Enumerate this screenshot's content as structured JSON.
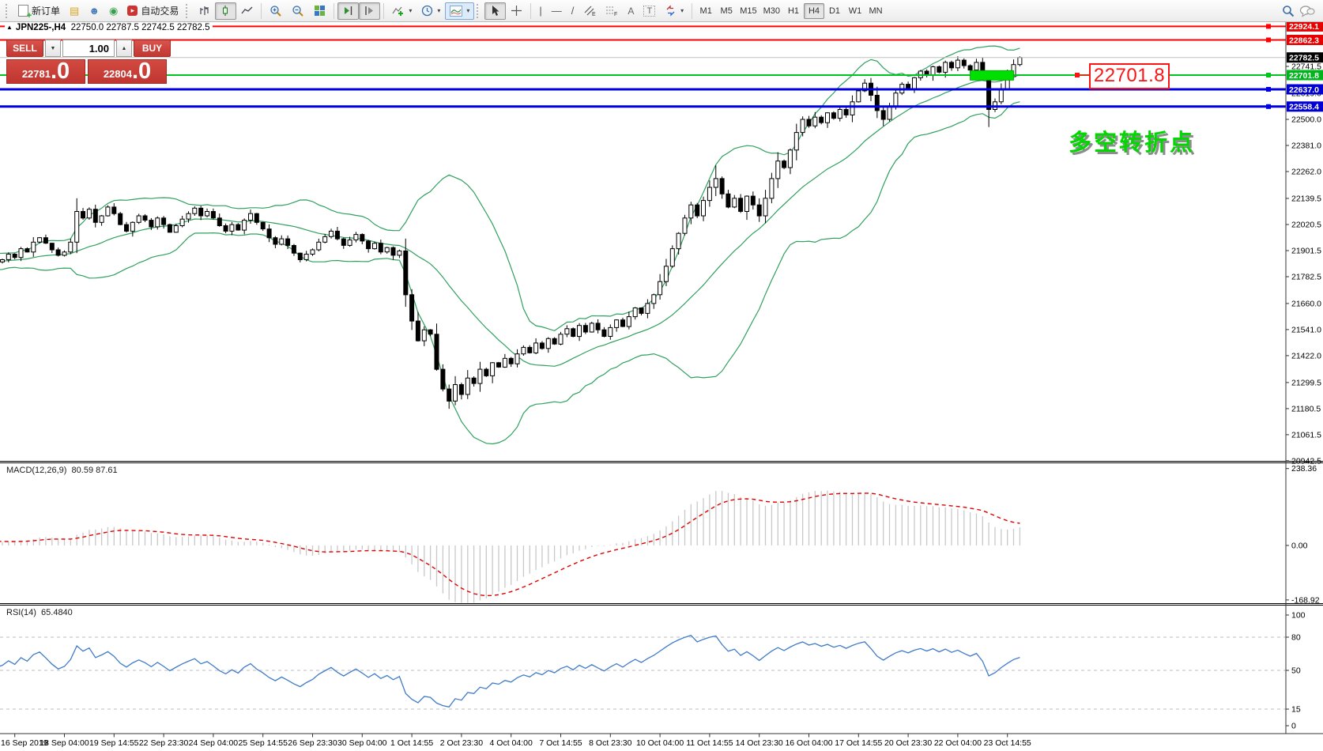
{
  "toolbar": {
    "new_order_label": "新订单",
    "autotrading_label": "自动交易",
    "tool_a_label": "A",
    "tool_t_label": "T",
    "timeframes": [
      "M1",
      "M5",
      "M15",
      "M30",
      "H1",
      "H4",
      "D1",
      "W1",
      "MN"
    ],
    "active_timeframe": "H4"
  },
  "chart_header": {
    "collapse_arrow": "▲",
    "symbol_tf": "JPN225-,H4",
    "ohlc": "22750.0 22787.5 22742.5 22782.5"
  },
  "trade_panel": {
    "sell_label": "SELL",
    "buy_label": "BUY",
    "volume": "1.00",
    "sell_price_small": "22781",
    "sell_price_big": ".0",
    "buy_price_small": "22804",
    "buy_price_big": ".0"
  },
  "indicator_labels": {
    "macd": "MACD(12,26,9)",
    "macd_values": "80.59 87.61",
    "rsi": "RSI(14)",
    "rsi_values": "65.4840"
  },
  "annotations": {
    "price_callout": "22701.8",
    "turning_point_text": "多空转折点",
    "highlight_box": {
      "from_candle": 156,
      "to_candle": 163,
      "price_top": 22722,
      "price_bottom": 22679,
      "color": "#00e000"
    }
  },
  "levels": [
    {
      "price": 22924.1,
      "label": "22924.1",
      "line_color": "#ff0000",
      "badge_color": "#e60000",
      "width": 2
    },
    {
      "price": 22862.3,
      "label": "22862.3",
      "line_color": "#ff0000",
      "badge_color": "#e60000",
      "width": 2
    },
    {
      "price": 22782.5,
      "label": "22782.5",
      "line_color": "#c0c0c0",
      "badge_color": "#000000",
      "width": 1,
      "current": true
    },
    {
      "price": 22701.8,
      "label": "22701.8",
      "line_color": "#00c41f",
      "badge_color": "#00b41c",
      "width": 2
    },
    {
      "price": 22637.0,
      "label": "22637.0",
      "line_color": "#0000e0",
      "badge_color": "#0000d2",
      "width": 3
    },
    {
      "price": 22558.4,
      "label": "22558.4",
      "line_color": "#0000e0",
      "badge_color": "#0000d2",
      "width": 3
    }
  ],
  "axis": {
    "price_ticks": [
      22741.5,
      22619.0,
      22500.0,
      22381.0,
      22262.0,
      22139.5,
      22020.5,
      21901.5,
      21782.5,
      21660.0,
      21541.0,
      21422.0,
      21299.5,
      21180.5,
      21061.5,
      20942.5
    ],
    "macd_ticks": [
      {
        "value": 238.36,
        "label": "238.36"
      },
      {
        "value": 0,
        "label": "0.00"
      },
      {
        "value": -168.92,
        "label": "-168.92"
      }
    ],
    "rsi_ticks": [
      {
        "value": 100,
        "label": "100",
        "dashed": false
      },
      {
        "value": 80,
        "label": "80",
        "dashed": true
      },
      {
        "value": 50,
        "label": "50",
        "dashed": true
      },
      {
        "value": 15,
        "label": "15",
        "dashed": true
      },
      {
        "value": 0,
        "label": "0",
        "dashed": false
      }
    ],
    "time_labels": [
      "16 Sep 2019",
      "18 Sep 04:00",
      "19 Sep 14:55",
      "22 Sep 23:30",
      "24 Sep 04:00",
      "25 Sep 14:55",
      "26 Sep 23:30",
      "30 Sep 04:00",
      "1 Oct 14:55",
      "2 Oct 23:30",
      "4 Oct 04:00",
      "7 Oct 14:55",
      "8 Oct 23:30",
      "10 Oct 04:00",
      "11 Oct 14:55",
      "14 Oct 23:30",
      "16 Oct 04:00",
      "17 Oct 14:55",
      "20 Oct 23:30",
      "22 Oct 04:00",
      "23 Oct 14:55"
    ]
  },
  "chart_data": {
    "type": "candlestick",
    "symbol": "JPN225-",
    "timeframe": "H4",
    "title": "JPN225-,H4  22750.0 22787.5 22742.5 22782.5",
    "visible_start": 26,
    "candles_per_time_tick": 8,
    "first_tick_candle": 2,
    "closes": [
      21800,
      21815,
      21795,
      21830,
      21820,
      21845,
      21830,
      21810,
      21835,
      21855,
      21840,
      21820,
      21850,
      21870,
      21855,
      21835,
      21860,
      21880,
      21865,
      21845,
      21870,
      21885,
      21860,
      21840,
      21865,
      21850,
      21860,
      21885,
      21870,
      21910,
      21895,
      21940,
      21960,
      21935,
      21905,
      21880,
      21895,
      21940,
      22080,
      22050,
      22090,
      22030,
      22060,
      22100,
      22070,
      22020,
      21990,
      22030,
      22060,
      22040,
      22010,
      22050,
      22020,
      21985,
      22015,
      22045,
      22070,
      22095,
      22060,
      22080,
      22050,
      22015,
      21990,
      22020,
      21995,
      22040,
      22070,
      22030,
      22000,
      21960,
      21930,
      21955,
      21925,
      21890,
      21860,
      21885,
      21905,
      21940,
      21965,
      21990,
      21955,
      21925,
      21950,
      21975,
      21945,
      21910,
      21935,
      21895,
      21915,
      21880,
      21900,
      21700,
      21580,
      21490,
      21540,
      21520,
      21360,
      21270,
      21215,
      21290,
      21245,
      21320,
      21295,
      21360,
      21330,
      21390,
      21370,
      21410,
      21385,
      21430,
      21460,
      21435,
      21480,
      21455,
      21500,
      21475,
      21520,
      21545,
      21510,
      21560,
      21530,
      21570,
      21540,
      21510,
      21550,
      21585,
      21555,
      21600,
      21640,
      21615,
      21660,
      21700,
      21760,
      21830,
      21910,
      21980,
      22050,
      22110,
      22060,
      22130,
      22190,
      22230,
      22160,
      22100,
      22140,
      22080,
      22150,
      22110,
      22060,
      22140,
      22230,
      22310,
      22280,
      22360,
      22440,
      22500,
      22470,
      22510,
      22485,
      22530,
      22505,
      22545,
      22520,
      22580,
      22630,
      22665,
      22610,
      22540,
      22500,
      22560,
      22620,
      22660,
      22640,
      22690,
      22720,
      22700,
      22740,
      22715,
      22760,
      22735,
      22770,
      22745,
      22725,
      22760,
      22700,
      22545,
      22580,
      22640,
      22695,
      22750,
      22782.5
    ],
    "wick_overrides": {
      "12": [
        22140,
        21890
      ],
      "72": [
        21290,
        21180
      ],
      "115": [
        22290,
        22150
      ],
      "142": [
        22560,
        22470
      ],
      "159": [
        22705,
        22465
      ],
      "164": [
        22787.5,
        22742.5
      ]
    },
    "last_candle": {
      "open": 22750.0,
      "high": 22787.5,
      "low": 22742.5,
      "close": 22782.5
    },
    "indicators": [
      {
        "name": "Bollinger Bands",
        "period": 20,
        "deviation": 2,
        "color": "#2fa05e"
      },
      {
        "name": "MACD",
        "fast": 12,
        "slow": 26,
        "signal": 9,
        "histogram_color": "#c8c8c8",
        "signal_color": "#e00000"
      },
      {
        "name": "RSI",
        "period": 14,
        "color": "#3e7bc8"
      }
    ]
  }
}
